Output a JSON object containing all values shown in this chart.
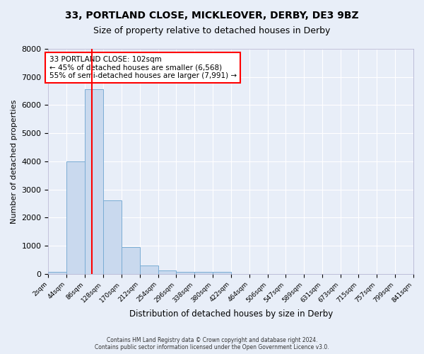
{
  "title1": "33, PORTLAND CLOSE, MICKLEOVER, DERBY, DE3 9BZ",
  "title2": "Size of property relative to detached houses in Derby",
  "xlabel": "Distribution of detached houses by size in Derby",
  "ylabel": "Number of detached properties",
  "annotation_line1": "33 PORTLAND CLOSE: 102sqm",
  "annotation_line2": "← 45% of detached houses are smaller (6,568)",
  "annotation_line3": "55% of semi-detached houses are larger (7,991) →",
  "bin_edges": [
    2,
    44,
    86,
    128,
    170,
    212,
    254,
    296,
    338,
    380,
    422,
    464,
    506,
    547,
    589,
    631,
    673,
    715,
    757,
    799,
    841
  ],
  "bar_heights": [
    80,
    4000,
    6560,
    2620,
    960,
    310,
    115,
    80,
    80,
    80,
    0,
    0,
    0,
    0,
    0,
    0,
    0,
    0,
    0,
    0
  ],
  "bar_color": "#c9d9ee",
  "bar_edge_color": "#7aadd4",
  "red_line_x": 102,
  "ylim": [
    0,
    8000
  ],
  "yticks": [
    0,
    1000,
    2000,
    3000,
    4000,
    5000,
    6000,
    7000,
    8000
  ],
  "background_color": "#e8eef8",
  "grid_color": "#ffffff",
  "title1_fontsize": 10,
  "title2_fontsize": 9,
  "footer": "Contains HM Land Registry data © Crown copyright and database right 2024.\nContains public sector information licensed under the Open Government Licence v3.0."
}
